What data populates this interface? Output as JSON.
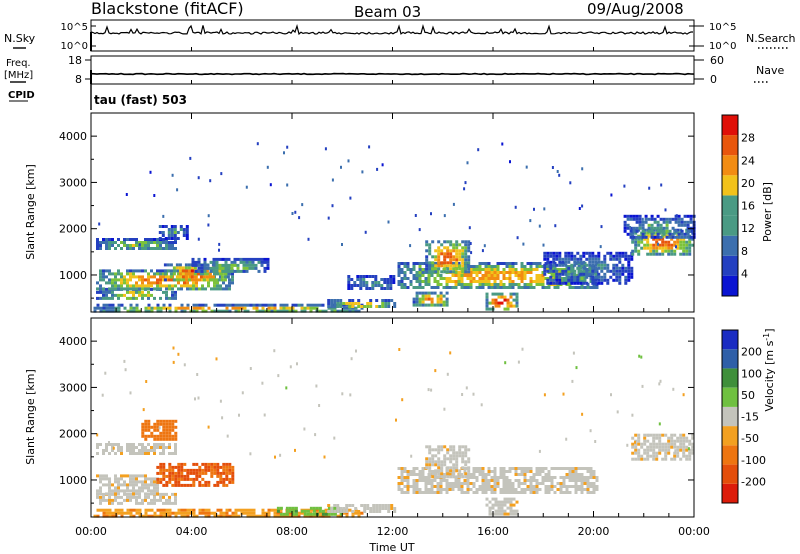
{
  "header": {
    "station": "Blackstone (fitACF)",
    "beam": "Beam 03",
    "date": "09/Aug/2008"
  },
  "left_labels": {
    "nsky": "N.Sky",
    "freq": "Freq.",
    "freq_unit": "[MHz]",
    "cpid": "CPID"
  },
  "right_labels": {
    "nsearch": "N.Search",
    "nave": "Nave"
  },
  "cpid_text": "tau (fast) 503",
  "colors": {
    "power": [
      "#0a14d2",
      "#2440c0",
      "#3c6fae",
      "#4a9a84",
      "#7cc23a",
      "#f2c21b",
      "#f28c12",
      "#e8560c",
      "#e01008"
    ],
    "velocity_neg": [
      "#f3a020",
      "#ee7510",
      "#e44e0a",
      "#dc1c0a"
    ],
    "velocity_pos": [
      "#6fc040",
      "#3f8f3a",
      "#2f5fa8",
      "#1a2cc2"
    ],
    "velocity_ground": "#c4c4bc"
  },
  "chart_data": [
    {
      "type": "line",
      "title": "",
      "ylabel": "N.Sky",
      "y2label": "N.Search",
      "yticks": [
        "10^5",
        "10^0"
      ],
      "y2ticks": [
        "10^5",
        "10^0"
      ],
      "xlim": [
        0,
        24
      ],
      "series": [
        {
          "name": "N.Sky",
          "baseline": 10000,
          "noise": "spiky"
        }
      ]
    },
    {
      "type": "line",
      "ylabel": "Freq. [MHz]",
      "y2label": "Nave",
      "ylim": [
        8,
        18
      ],
      "y2lim": [
        0,
        60
      ],
      "yticks": [
        18,
        8
      ],
      "y2ticks": [
        60,
        0
      ],
      "xlim": [
        0,
        24
      ],
      "series": [
        {
          "name": "Freq.",
          "value": 10.4
        }
      ]
    },
    {
      "type": "heatmap",
      "variable": "Power",
      "ylabel": "Slant Range [km]",
      "colorbar_label": "Power [dB]",
      "colorbar_ticks": [
        4,
        8,
        12,
        16,
        20,
        24,
        28
      ],
      "ylim": [
        200,
        4500
      ],
      "yticks": [
        1000,
        2000,
        3000,
        4000
      ],
      "xlim": [
        0,
        24
      ],
      "bands": [
        {
          "t0": 0.1,
          "t1": 10.8,
          "r0": 230,
          "r1": 380,
          "peak": 22
        },
        {
          "t0": 0.2,
          "t1": 3.4,
          "r0": 480,
          "r1": 720,
          "peak": 18
        },
        {
          "t0": 0.2,
          "t1": 5.6,
          "r0": 700,
          "r1": 1120,
          "peak": 24
        },
        {
          "t0": 2.9,
          "t1": 5.5,
          "r0": 880,
          "r1": 1250,
          "peak": 26
        },
        {
          "t0": 4.0,
          "t1": 7.0,
          "r0": 1050,
          "r1": 1370,
          "peak": 14
        },
        {
          "t0": 0.2,
          "t1": 3.4,
          "r0": 1560,
          "r1": 1800,
          "peak": 16
        },
        {
          "t0": 2.7,
          "t1": 3.8,
          "r0": 1820,
          "r1": 2080,
          "peak": 12
        },
        {
          "t0": 9.4,
          "t1": 12.1,
          "r0": 300,
          "r1": 480,
          "peak": 20
        },
        {
          "t0": 10.2,
          "t1": 12.0,
          "r0": 720,
          "r1": 1000,
          "peak": 12
        },
        {
          "t0": 12.2,
          "t1": 20.2,
          "r0": 720,
          "r1": 1280,
          "peak": 22
        },
        {
          "t0": 13.3,
          "t1": 15.0,
          "r0": 1050,
          "r1": 1750,
          "peak": 25
        },
        {
          "t0": 12.8,
          "t1": 14.2,
          "r0": 350,
          "r1": 640,
          "peak": 24
        },
        {
          "t0": 15.7,
          "t1": 16.9,
          "r0": 280,
          "r1": 620,
          "peak": 30
        },
        {
          "t0": 18.0,
          "t1": 21.5,
          "r0": 850,
          "r1": 1500,
          "peak": 10
        },
        {
          "t0": 21.5,
          "t1": 24.0,
          "r0": 1450,
          "r1": 2000,
          "peak": 24
        },
        {
          "t0": 21.2,
          "t1": 24.0,
          "r0": 1800,
          "r1": 2300,
          "peak": 12
        }
      ]
    },
    {
      "type": "heatmap",
      "variable": "Velocity",
      "ylabel": "Slant Range [km]",
      "colorbar_label": "Velocity [m s^-1]",
      "colorbar_ticks": [
        200,
        100,
        50,
        -15,
        -50,
        -100,
        -200
      ],
      "ylim": [
        200,
        4500
      ],
      "yticks": [
        1000,
        2000,
        3000,
        4000
      ],
      "xlim": [
        0,
        24
      ],
      "xticks": [
        "00:00",
        "04:00",
        "08:00",
        "12:00",
        "16:00",
        "20:00",
        "00:00"
      ],
      "xlabel": "Time UT",
      "bands": [
        {
          "t0": 0.1,
          "t1": 10.8,
          "r0": 230,
          "r1": 380,
          "v": -55
        },
        {
          "t0": 7.4,
          "t1": 10.0,
          "r0": 230,
          "r1": 420,
          "v": 60
        },
        {
          "t0": 0.2,
          "t1": 3.4,
          "r0": 480,
          "r1": 720,
          "v": 0
        },
        {
          "t0": 0.2,
          "t1": 2.6,
          "r0": 700,
          "r1": 1120,
          "v": 0
        },
        {
          "t0": 2.6,
          "t1": 5.6,
          "r0": 880,
          "r1": 1370,
          "v": -120
        },
        {
          "t0": 2.0,
          "t1": 3.4,
          "r0": 1900,
          "r1": 2300,
          "v": -95
        },
        {
          "t0": 0.2,
          "t1": 3.4,
          "r0": 1560,
          "r1": 1800,
          "v": 0
        },
        {
          "t0": 9.4,
          "t1": 12.1,
          "r0": 300,
          "r1": 480,
          "v": 0
        },
        {
          "t0": 12.2,
          "t1": 20.2,
          "r0": 720,
          "r1": 1280,
          "v": 0
        },
        {
          "t0": 13.3,
          "t1": 15.0,
          "r0": 1050,
          "r1": 1750,
          "v": 0
        },
        {
          "t0": 15.7,
          "t1": 16.9,
          "r0": 280,
          "r1": 620,
          "v": 0
        },
        {
          "t0": 21.5,
          "t1": 24.0,
          "r0": 1450,
          "r1": 2000,
          "v": 0
        }
      ]
    }
  ]
}
